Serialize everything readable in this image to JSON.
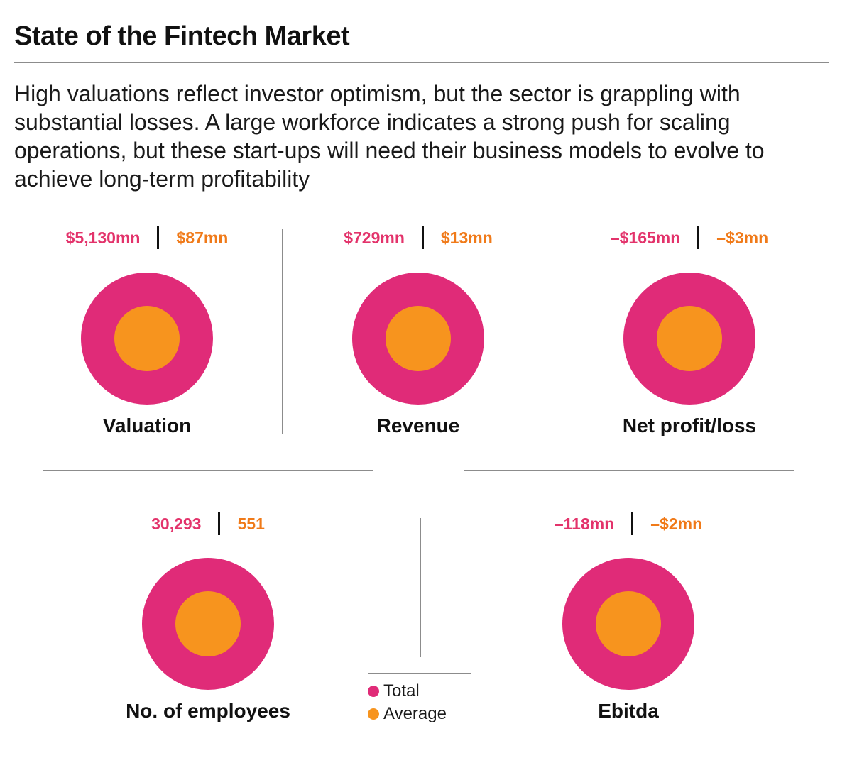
{
  "title": "State of the Fintech Market",
  "subtitle": "High valuations reflect investor optimism, but the sector is grappling with substantial losses. A large workforce indicates a strong push for scaling operations, but these start-ups will need their business models to evolve to achieve long-term profitability",
  "colors": {
    "total": "#e02b78",
    "average": "#f7941e",
    "total_text": "#e3336b",
    "average_text": "#f07a19"
  },
  "chart_data": {
    "type": "bubble",
    "legend": {
      "placement": "bottom-center",
      "items": [
        "Total",
        "Average"
      ]
    },
    "metrics": [
      {
        "label": "Valuation",
        "total": "$5,130mn",
        "average": "$87mn",
        "total_value": 5130,
        "average_value": 87,
        "unit": "$mn"
      },
      {
        "label": "Revenue",
        "total": "$729mn",
        "average": "$13mn",
        "total_value": 729,
        "average_value": 13,
        "unit": "$mn"
      },
      {
        "label": "Net profit/loss",
        "total": "–$165mn",
        "average": "–$3mn",
        "total_value": -165,
        "average_value": -3,
        "unit": "$mn"
      },
      {
        "label": "No. of employees",
        "total": "30,293",
        "average": "551",
        "total_value": 30293,
        "average_value": 551,
        "unit": ""
      },
      {
        "label": "Ebitda",
        "total": "–118mn",
        "average": "–$2mn",
        "total_value": -118,
        "average_value": -2,
        "unit": "$mn"
      }
    ]
  }
}
